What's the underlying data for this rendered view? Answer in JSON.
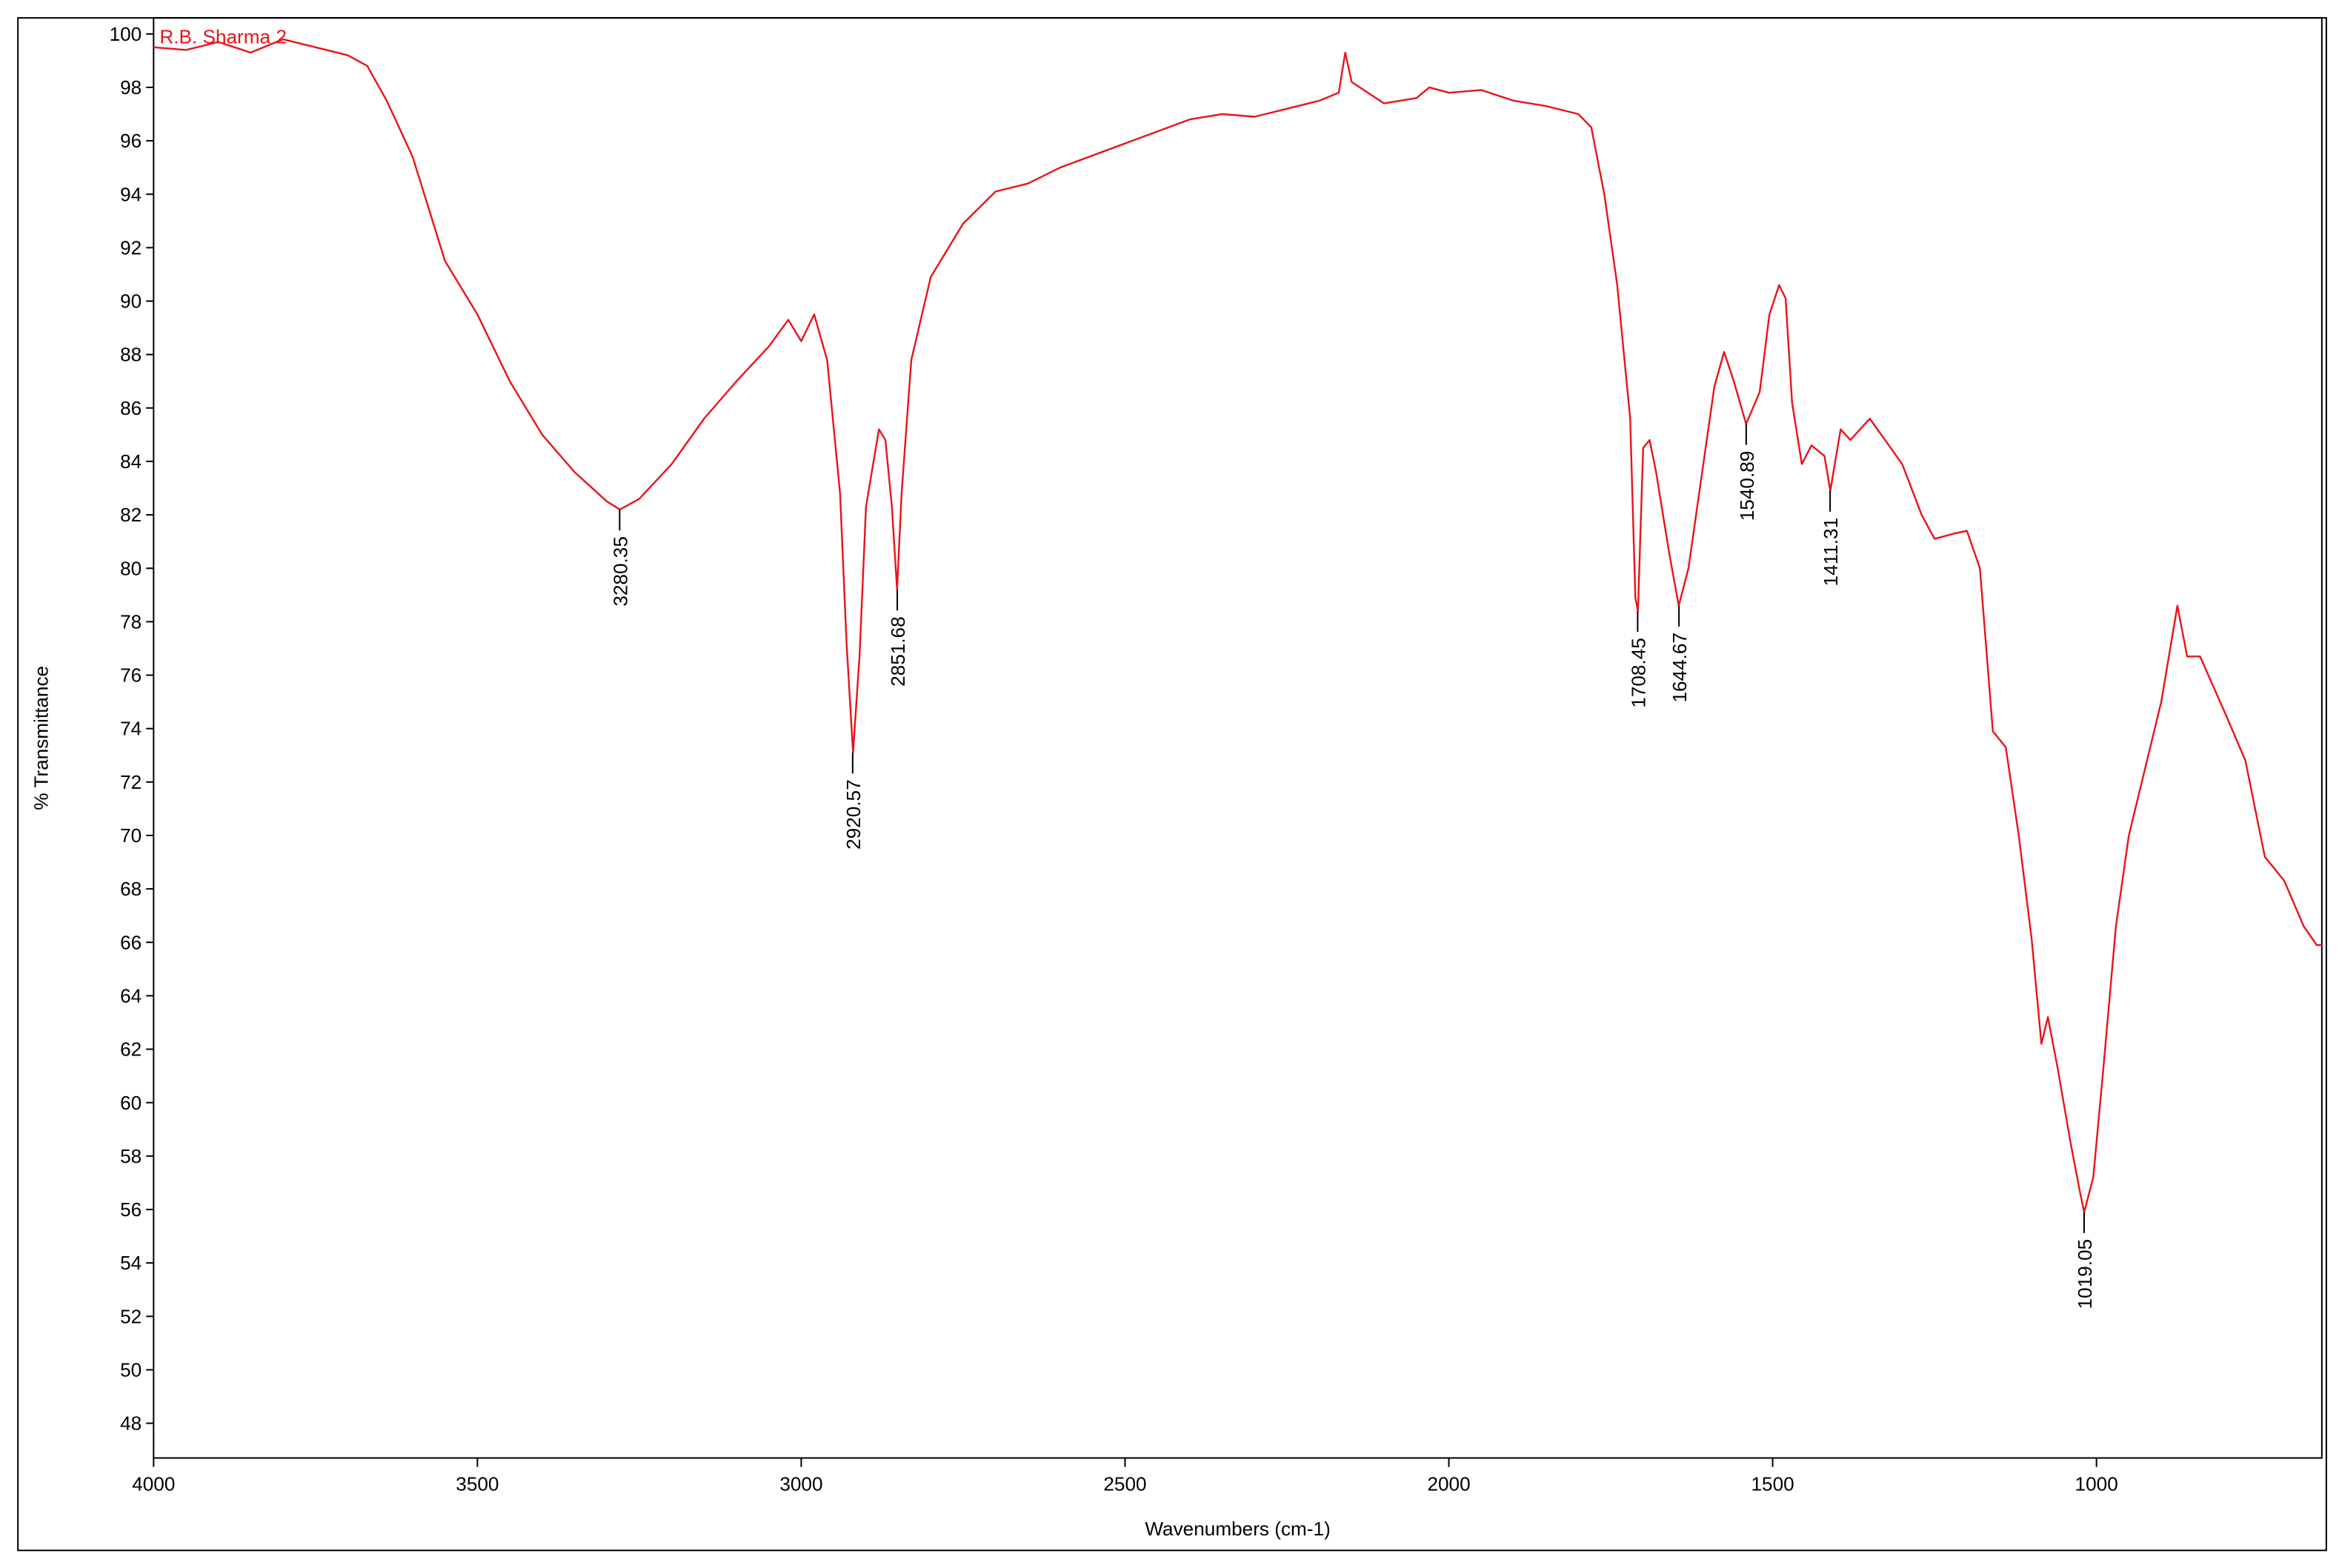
{
  "chart_data": {
    "type": "line",
    "x_label": "Wavenumbers (cm-1)",
    "y_label": "% Transmittance",
    "xlim": [
      4000,
      652
    ],
    "ylim": [
      46.7,
      100.6
    ],
    "xticks": [
      4000,
      3500,
      3000,
      2500,
      2000,
      1500,
      1000
    ],
    "yticks": [
      48,
      50,
      52,
      54,
      56,
      58,
      60,
      62,
      64,
      66,
      68,
      70,
      72,
      74,
      76,
      78,
      80,
      82,
      84,
      86,
      88,
      90,
      92,
      94,
      96,
      98,
      100
    ],
    "x": [
      4000,
      3950,
      3900,
      3850,
      3800,
      3750,
      3700,
      3670,
      3640,
      3600,
      3550,
      3500,
      3450,
      3400,
      3350,
      3300,
      3280,
      3250,
      3200,
      3150,
      3100,
      3050,
      3020,
      3000,
      2980,
      2960,
      2940,
      2930,
      2920,
      2910,
      2900,
      2880,
      2870,
      2860,
      2852,
      2845,
      2830,
      2800,
      2750,
      2700,
      2650,
      2600,
      2500,
      2400,
      2350,
      2300,
      2250,
      2200,
      2170,
      2160,
      2150,
      2100,
      2050,
      2030,
      2000,
      1950,
      1900,
      1850,
      1800,
      1780,
      1760,
      1740,
      1720,
      1712,
      1708,
      1700,
      1690,
      1680,
      1660,
      1645,
      1630,
      1610,
      1590,
      1575,
      1560,
      1541,
      1520,
      1505,
      1490,
      1480,
      1470,
      1455,
      1440,
      1420,
      1411,
      1395,
      1380,
      1350,
      1300,
      1270,
      1250,
      1220,
      1200,
      1180,
      1160,
      1140,
      1120,
      1100,
      1085,
      1075,
      1060,
      1040,
      1025,
      1019,
      1005,
      990,
      970,
      950,
      900,
      875,
      860,
      840,
      800,
      770,
      740,
      710,
      680,
      660,
      652
    ],
    "series": [
      {
        "name": "R.B. Sharma 2",
        "color": "#e8141c",
        "values": [
          99.5,
          99.4,
          99.7,
          99.3,
          99.8,
          99.5,
          99.2,
          98.8,
          97.5,
          95.4,
          91.5,
          89.5,
          87,
          85,
          83.6,
          82.5,
          82.2,
          82.6,
          83.9,
          85.6,
          87,
          88.3,
          89.3,
          88.5,
          89.5,
          87.8,
          82.8,
          77.2,
          73.1,
          76.7,
          82.3,
          85.2,
          84.8,
          82.3,
          79.2,
          82.8,
          87.8,
          90.9,
          92.9,
          94.1,
          94.4,
          95,
          95.9,
          96.8,
          97,
          96.9,
          97.2,
          97.5,
          97.8,
          99.3,
          98.2,
          97.4,
          97.6,
          98,
          97.8,
          97.9,
          97.5,
          97.3,
          97,
          96.5,
          94,
          90.6,
          85.6,
          78.9,
          78.4,
          84.5,
          84.8,
          83.6,
          80.6,
          78.6,
          80,
          83.4,
          86.8,
          88.1,
          87,
          85.4,
          86.6,
          89.5,
          90.6,
          90.1,
          86.2,
          83.9,
          84.6,
          84.2,
          82.9,
          85.2,
          84.8,
          85.6,
          83.9,
          82,
          81.1,
          81.3,
          81.4,
          80,
          73.9,
          73.3,
          70,
          66.1,
          62.2,
          63.2,
          61.3,
          58.5,
          56.6,
          55.9,
          57.2,
          61.1,
          66.6,
          70,
          75,
          78.6,
          76.7,
          76.7,
          74.5,
          72.8,
          69.2,
          68.3,
          66.6,
          65.9,
          65.9
        ]
      }
    ],
    "annotations": [
      {
        "x": 3280.35,
        "y": 82.2
      },
      {
        "x": 2920.57,
        "y": 73.1
      },
      {
        "x": 2851.68,
        "y": 79.2
      },
      {
        "x": 1708.45,
        "y": 78.4
      },
      {
        "x": 1644.67,
        "y": 78.6
      },
      {
        "x": 1540.89,
        "y": 85.4
      },
      {
        "x": 1411.31,
        "y": 82.9
      },
      {
        "x": 1019.05,
        "y": 55.9
      }
    ]
  }
}
